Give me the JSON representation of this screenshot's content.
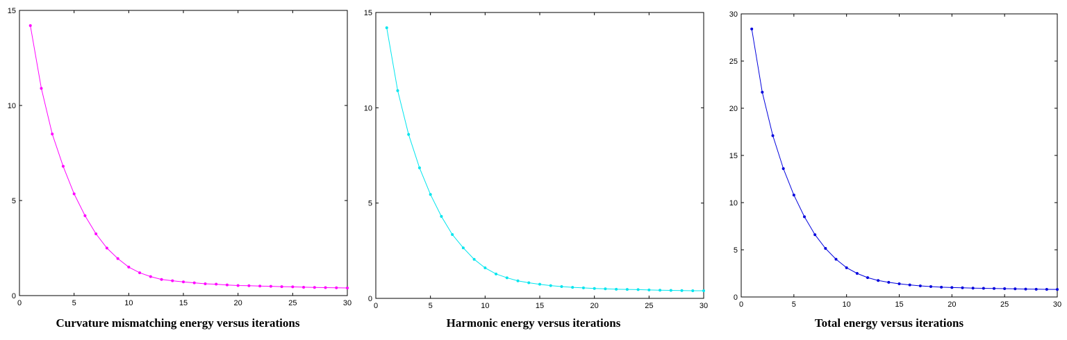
{
  "chart_data": [
    {
      "type": "line",
      "title": "Curvature mismatching energy versus iterations",
      "color": "#ff00ff",
      "x": [
        1,
        2,
        3,
        4,
        5,
        6,
        7,
        8,
        9,
        10,
        11,
        12,
        13,
        14,
        15,
        16,
        17,
        18,
        19,
        20,
        21,
        22,
        23,
        24,
        25,
        26,
        27,
        28,
        29,
        30
      ],
      "values": [
        14.2,
        10.9,
        8.5,
        6.8,
        5.35,
        4.2,
        3.25,
        2.5,
        1.95,
        1.5,
        1.2,
        1.0,
        0.85,
        0.78,
        0.72,
        0.67,
        0.62,
        0.6,
        0.56,
        0.53,
        0.52,
        0.5,
        0.49,
        0.47,
        0.46,
        0.44,
        0.43,
        0.42,
        0.41,
        0.4
      ],
      "xlim": [
        0,
        30
      ],
      "ylim": [
        0,
        15
      ],
      "xticks": [
        "0",
        "5",
        "10",
        "15",
        "20",
        "25",
        "30"
      ],
      "yticks": [
        "0",
        "5",
        "10",
        "15"
      ],
      "grid": false
    },
    {
      "type": "line",
      "title": "Harmonic energy versus iterations",
      "color": "#00e5ee",
      "x": [
        1,
        2,
        3,
        4,
        5,
        6,
        7,
        8,
        9,
        10,
        11,
        12,
        13,
        14,
        15,
        16,
        17,
        18,
        19,
        20,
        21,
        22,
        23,
        24,
        25,
        26,
        27,
        28,
        29,
        30
      ],
      "values": [
        14.2,
        10.9,
        8.6,
        6.85,
        5.45,
        4.3,
        3.35,
        2.65,
        2.05,
        1.6,
        1.28,
        1.08,
        0.92,
        0.82,
        0.74,
        0.67,
        0.62,
        0.58,
        0.55,
        0.52,
        0.5,
        0.48,
        0.47,
        0.46,
        0.44,
        0.43,
        0.42,
        0.41,
        0.4,
        0.4
      ],
      "xlim": [
        0,
        30
      ],
      "ylim": [
        0,
        15
      ],
      "xticks": [
        "0",
        "5",
        "10",
        "15",
        "20",
        "25",
        "30"
      ],
      "yticks": [
        "0",
        "5",
        "10",
        "15"
      ],
      "grid": false
    },
    {
      "type": "line",
      "title": "Total energy versus iterations",
      "color": "#0000dd",
      "x": [
        1,
        2,
        3,
        4,
        5,
        6,
        7,
        8,
        9,
        10,
        11,
        12,
        13,
        14,
        15,
        16,
        17,
        18,
        19,
        20,
        21,
        22,
        23,
        24,
        25,
        26,
        27,
        28,
        29,
        30
      ],
      "values": [
        28.4,
        21.7,
        17.1,
        13.6,
        10.8,
        8.5,
        6.6,
        5.15,
        4.0,
        3.1,
        2.5,
        2.05,
        1.75,
        1.55,
        1.4,
        1.28,
        1.18,
        1.1,
        1.04,
        1.0,
        0.97,
        0.94,
        0.92,
        0.9,
        0.88,
        0.86,
        0.84,
        0.82,
        0.81,
        0.8
      ],
      "xlim": [
        0,
        30
      ],
      "ylim": [
        0,
        30
      ],
      "xticks": [
        "0",
        "5",
        "10",
        "15",
        "20",
        "25",
        "30"
      ],
      "yticks": [
        "0",
        "5",
        "10",
        "15",
        "20",
        "25",
        "30"
      ],
      "grid": false
    }
  ]
}
